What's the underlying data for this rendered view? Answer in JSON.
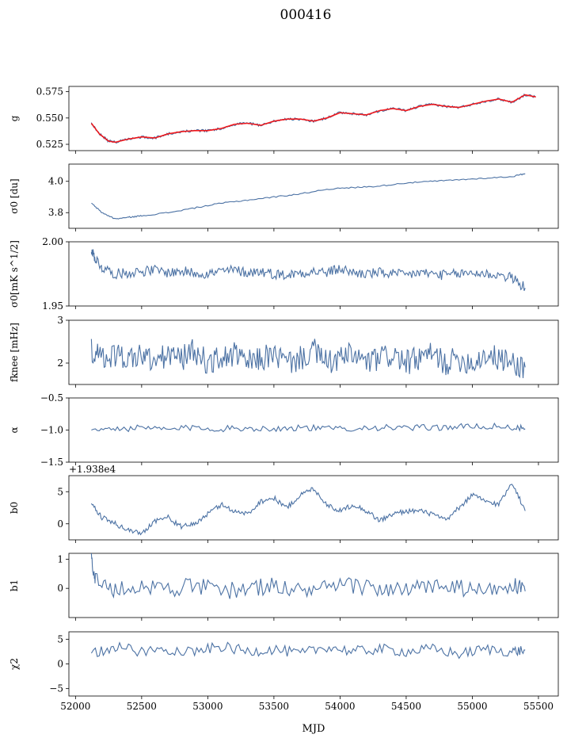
{
  "figure": {
    "title": "000416",
    "xlabel": "MJD",
    "line_color": "#4c72a4",
    "fit_color": "#ff0000"
  },
  "chart_data": [
    {
      "type": "line",
      "ylabel": "g",
      "xlim": [
        51950,
        55650
      ],
      "ylim": [
        0.519,
        0.58
      ],
      "yticks": [
        "0.525",
        "0.550",
        "0.575"
      ],
      "ytick_values": [
        0.525,
        0.55,
        0.575
      ],
      "series": [
        {
          "x": [
            52120,
            52180,
            52250,
            52300,
            52400,
            52500,
            52600,
            52700,
            52800,
            52900,
            53000,
            53100,
            53200,
            53300,
            53400,
            53500,
            53600,
            53700,
            53800,
            53900,
            54000,
            54100,
            54200,
            54300,
            54400,
            54500,
            54600,
            54700,
            54800,
            54900,
            55000,
            55100,
            55200,
            55300,
            55400,
            55480
          ],
          "values": [
            0.545,
            0.535,
            0.528,
            0.527,
            0.53,
            0.532,
            0.531,
            0.535,
            0.537,
            0.538,
            0.538,
            0.54,
            0.544,
            0.545,
            0.543,
            0.547,
            0.549,
            0.549,
            0.547,
            0.55,
            0.555,
            0.554,
            0.553,
            0.557,
            0.559,
            0.557,
            0.561,
            0.563,
            0.561,
            0.56,
            0.563,
            0.566,
            0.568,
            0.565,
            0.572,
            0.57
          ]
        }
      ]
    },
    {
      "type": "line",
      "ylabel": "σ0 [du]",
      "xlim": [
        51950,
        55650
      ],
      "ylim": [
        3.7,
        4.11
      ],
      "yticks": [
        "3.8",
        "4.0"
      ],
      "ytick_values": [
        3.8,
        4.0
      ],
      "series": [
        {
          "x": [
            52120,
            52200,
            52300,
            52400,
            52500,
            52700,
            52900,
            53100,
            53300,
            53500,
            53700,
            53900,
            54100,
            54300,
            54500,
            54700,
            54900,
            55100,
            55300,
            55400
          ],
          "values": [
            3.86,
            3.8,
            3.76,
            3.77,
            3.78,
            3.8,
            3.83,
            3.86,
            3.88,
            3.9,
            3.92,
            3.95,
            3.96,
            3.97,
            3.99,
            4.0,
            4.01,
            4.02,
            4.03,
            4.05
          ]
        }
      ]
    },
    {
      "type": "line",
      "ylabel": "σ0[mK s^1/2]",
      "xlim": [
        51950,
        55650
      ],
      "ylim": [
        1.95,
        2.0
      ],
      "yticks": [
        "1.95",
        "2.00"
      ],
      "ytick_values": [
        1.95,
        2.0
      ],
      "series": [
        {
          "x": [
            52120,
            52150,
            52200,
            52300,
            52400,
            52500,
            52600,
            52700,
            52800,
            52900,
            53000,
            53100,
            53200,
            53300,
            53400,
            53500,
            53600,
            53700,
            53800,
            53900,
            54000,
            54100,
            54200,
            54300,
            54400,
            54500,
            54600,
            54700,
            54800,
            54900,
            55000,
            55100,
            55200,
            55300,
            55400
          ],
          "values": [
            1.994,
            1.987,
            1.98,
            1.975,
            1.976,
            1.977,
            1.978,
            1.976,
            1.977,
            1.976,
            1.975,
            1.977,
            1.978,
            1.976,
            1.977,
            1.975,
            1.974,
            1.976,
            1.977,
            1.976,
            1.979,
            1.976,
            1.975,
            1.976,
            1.975,
            1.974,
            1.976,
            1.975,
            1.974,
            1.975,
            1.976,
            1.975,
            1.974,
            1.972,
            1.964
          ]
        }
      ]
    },
    {
      "type": "line",
      "ylabel": "fknee [mHz]",
      "xlim": [
        51950,
        55650
      ],
      "ylim": [
        1.5,
        3.0
      ],
      "yticks": [
        "2",
        "3"
      ],
      "ytick_values": [
        2,
        3
      ],
      "series": [
        {
          "x": [
            52120,
            52200,
            52300,
            52400,
            52500,
            52600,
            52700,
            52800,
            52900,
            53000,
            53100,
            53200,
            53300,
            53400,
            53500,
            53600,
            53700,
            53800,
            53900,
            54000,
            54100,
            54200,
            54300,
            54400,
            54500,
            54600,
            54700,
            54800,
            54900,
            55000,
            55100,
            55200,
            55300,
            55400
          ],
          "values": [
            2.3,
            2.1,
            2.2,
            2.1,
            2.2,
            2.0,
            2.2,
            2.1,
            2.3,
            2.0,
            2.1,
            2.2,
            2.0,
            2.1,
            2.2,
            2.0,
            2.1,
            2.3,
            2.0,
            2.1,
            2.2,
            2.0,
            2.1,
            2.2,
            2.0,
            2.1,
            2.2,
            2.0,
            2.1,
            2.0,
            2.2,
            2.1,
            2.0,
            1.9
          ]
        }
      ]
    },
    {
      "type": "line",
      "ylabel": "α",
      "xlim": [
        51950,
        55650
      ],
      "ylim": [
        -1.5,
        -0.5
      ],
      "yticks": [
        "−1.5",
        "−1.0",
        "−0.5"
      ],
      "ytick_values": [
        -1.5,
        -1.0,
        -0.5
      ],
      "series": [
        {
          "x": [
            52120,
            52300,
            52500,
            52700,
            52900,
            53100,
            53300,
            53500,
            53700,
            53900,
            54100,
            54300,
            54500,
            54700,
            54900,
            55100,
            55300,
            55400
          ],
          "values": [
            -1.0,
            -0.98,
            -0.97,
            -0.99,
            -0.96,
            -0.98,
            -0.97,
            -0.98,
            -0.96,
            -0.98,
            -0.97,
            -0.96,
            -0.97,
            -0.96,
            -0.95,
            -0.94,
            -0.96,
            -0.98
          ]
        }
      ]
    },
    {
      "type": "line",
      "ylabel": "b0",
      "offset_label": "+1.938e4",
      "xlim": [
        51950,
        55650
      ],
      "ylim": [
        -2.5,
        7.5
      ],
      "yticks": [
        "0",
        "5"
      ],
      "ytick_values": [
        0,
        5
      ],
      "series": [
        {
          "x": [
            52120,
            52200,
            52300,
            52400,
            52500,
            52600,
            52700,
            52800,
            52900,
            53000,
            53100,
            53200,
            53300,
            53400,
            53500,
            53600,
            53700,
            53800,
            53900,
            54000,
            54100,
            54200,
            54300,
            54400,
            54500,
            54600,
            54700,
            54800,
            54900,
            55000,
            55100,
            55200,
            55300,
            55400
          ],
          "values": [
            3.0,
            1.0,
            0.0,
            -1.0,
            -1.5,
            0.5,
            1.0,
            -0.5,
            0.0,
            1.5,
            3.0,
            2.0,
            1.5,
            3.5,
            4.0,
            2.5,
            4.5,
            5.5,
            3.0,
            2.0,
            3.0,
            2.0,
            0.5,
            1.5,
            2.0,
            2.0,
            1.5,
            0.5,
            2.5,
            4.5,
            3.5,
            3.0,
            6.5,
            2.0
          ]
        }
      ]
    },
    {
      "type": "line",
      "ylabel": "b1",
      "xlim": [
        51950,
        55650
      ],
      "ylim": [
        -1.0,
        1.2
      ],
      "yticks": [
        "0",
        "1"
      ],
      "ytick_values": [
        0,
        1
      ],
      "series": [
        {
          "x": [
            52120,
            52150,
            52300,
            52500,
            52700,
            52900,
            53100,
            53300,
            53500,
            53700,
            53900,
            54100,
            54300,
            54500,
            54700,
            54900,
            55100,
            55300,
            55400
          ],
          "values": [
            1.1,
            0.3,
            -0.1,
            0.1,
            0.0,
            0.1,
            -0.1,
            0.0,
            0.1,
            -0.1,
            0.0,
            0.1,
            0.0,
            -0.1,
            0.1,
            0.0,
            -0.1,
            0.1,
            -0.1
          ]
        }
      ]
    },
    {
      "type": "line",
      "ylabel": "χ2",
      "xlim": [
        51950,
        55650
      ],
      "ylim": [
        -6.5,
        6.5
      ],
      "yticks": [
        "−5",
        "0",
        "5"
      ],
      "ytick_values": [
        -5,
        0,
        5
      ],
      "xticks": [
        "52000",
        "52500",
        "53000",
        "53500",
        "54000",
        "54500",
        "55000",
        "55500"
      ],
      "xtick_values": [
        52000,
        52500,
        53000,
        53500,
        54000,
        54500,
        55000,
        55500
      ],
      "series": [
        {
          "x": [
            52120,
            52300,
            52500,
            52700,
            52900,
            53100,
            53300,
            53500,
            53700,
            53900,
            54100,
            54300,
            54500,
            54700,
            54900,
            55100,
            55300,
            55400
          ],
          "values": [
            2.0,
            3.5,
            2.5,
            3.0,
            2.5,
            3.5,
            2.5,
            3.0,
            2.0,
            3.5,
            2.5,
            3.0,
            2.5,
            3.0,
            2.0,
            3.0,
            2.5,
            2.8
          ]
        }
      ]
    }
  ]
}
